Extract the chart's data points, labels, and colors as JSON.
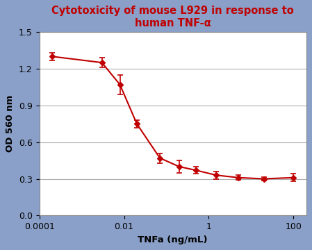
{
  "title_line1": "Cytotoxicity of mouse L929 in response to",
  "title_line2": "human TNF-α",
  "xlabel": "TNFa (ng/mL)",
  "ylabel": "OD 560 nm",
  "title_color": "#c00000",
  "line_color": "#c00000",
  "marker_color": "#c00000",
  "background_color": "#8aa0c8",
  "plot_bg_color": "#ffffff",
  "grid_color": "#b0b0b0",
  "x_values": [
    0.0002,
    0.003,
    0.008,
    0.02,
    0.07,
    0.2,
    0.5,
    1.5,
    5.0,
    20.0,
    100.0
  ],
  "y_values": [
    1.3,
    1.25,
    1.07,
    0.75,
    0.47,
    0.4,
    0.37,
    0.33,
    0.31,
    0.3,
    0.31
  ],
  "y_err": [
    0.03,
    0.04,
    0.08,
    0.03,
    0.04,
    0.05,
    0.03,
    0.03,
    0.02,
    0.015,
    0.03
  ],
  "ylim": [
    0,
    1.5
  ],
  "yticks": [
    0,
    0.3,
    0.6,
    0.9,
    1.2,
    1.5
  ],
  "title_fontsize": 10.5,
  "axis_label_fontsize": 9.5,
  "tick_fontsize": 9
}
